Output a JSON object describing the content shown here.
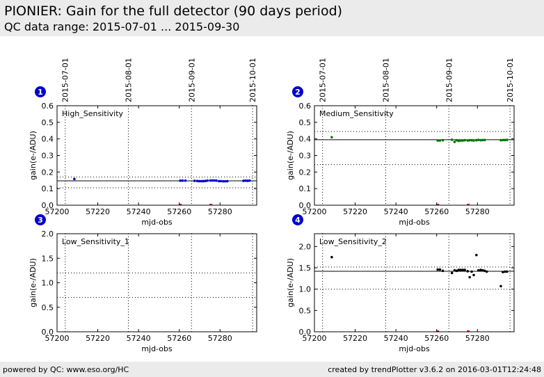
{
  "header": {
    "title": "PIONIER: Gain for the full detector (90 days period)",
    "subtitle": "QC data range: 2015-07-01 ... 2015-09-30"
  },
  "footer": {
    "left": "powered by QC: www.eso.org/HC",
    "right": "created by trendPlotter v3.6.2 on 2016-03-01T12:24:48"
  },
  "chart_data": [
    {
      "type": "scatter",
      "panel_number": "1",
      "label": "High_Sensitivity",
      "xlabel": "mjd-obs",
      "ylabel": "gain(e-/ADU)",
      "xlim": [
        57200,
        57298
      ],
      "ylim": [
        0,
        0.6
      ],
      "xticks": [
        57200,
        57220,
        57240,
        57260,
        57280
      ],
      "yticks": [
        0.0,
        0.1,
        0.2,
        0.3,
        0.4,
        0.5,
        0.6
      ],
      "date_ticks": [
        {
          "label": "2015-07-01",
          "x": 57204
        },
        {
          "label": "2015-08-01",
          "x": 57235
        },
        {
          "label": "2015-09-01",
          "x": 57266
        },
        {
          "label": "2015-10-01",
          "x": 57296
        }
      ],
      "ref_line": 0.147,
      "band": [
        0.105,
        0.17
      ],
      "color": "#0000cc",
      "x": [
        57208.5,
        57260.5,
        57261.6,
        57263.0,
        57267.5,
        57268.8,
        57269.8,
        57270.8,
        57271.8,
        57272.8,
        57273.8,
        57275.2,
        57276.2,
        57277.2,
        57278.2,
        57279.5,
        57280.5,
        57281.6,
        57282.6,
        57283.6,
        57291.5,
        57292.5,
        57293.5,
        57294.5
      ],
      "y": [
        0.158,
        0.148,
        0.148,
        0.148,
        0.147,
        0.146,
        0.145,
        0.145,
        0.145,
        0.146,
        0.148,
        0.149,
        0.149,
        0.149,
        0.148,
        0.145,
        0.145,
        0.144,
        0.144,
        0.145,
        0.147,
        0.148,
        0.147,
        0.148
      ],
      "flag_x": [
        57260.5,
        57275.5
      ]
    },
    {
      "type": "scatter",
      "panel_number": "2",
      "label": "Medium_Sensitivity",
      "xlabel": "mjd-obs",
      "ylabel": "gain(e-/ADU)",
      "xlim": [
        57200,
        57298
      ],
      "ylim": [
        0,
        0.6
      ],
      "xticks": [
        57200,
        57220,
        57240,
        57260,
        57280
      ],
      "yticks": [
        0.0,
        0.1,
        0.2,
        0.3,
        0.4,
        0.5,
        0.6
      ],
      "date_ticks": [
        {
          "label": "2015-07-01",
          "x": 57204
        },
        {
          "label": "2015-08-01",
          "x": 57235
        },
        {
          "label": "2015-09-01",
          "x": 57266
        },
        {
          "label": "2015-10-01",
          "x": 57296
        }
      ],
      "ref_line": 0.395,
      "band": [
        0.245,
        0.445
      ],
      "color": "#007700",
      "x": [
        57208.5,
        57260.5,
        57261.6,
        57263.0,
        57267.5,
        57268.8,
        57269.8,
        57270.8,
        57271.8,
        57272.8,
        57273.8,
        57275.2,
        57276.2,
        57277.2,
        57278.2,
        57279.5,
        57280.5,
        57281.6,
        57282.6,
        57283.6,
        57291.5,
        57292.5,
        57293.5,
        57294.5
      ],
      "y": [
        0.41,
        0.39,
        0.39,
        0.392,
        0.395,
        0.382,
        0.392,
        0.388,
        0.39,
        0.39,
        0.392,
        0.39,
        0.392,
        0.392,
        0.39,
        0.392,
        0.394,
        0.392,
        0.393,
        0.393,
        0.392,
        0.393,
        0.393,
        0.394
      ],
      "flag_x": [
        57260.5,
        57275.5
      ]
    },
    {
      "type": "scatter",
      "panel_number": "3",
      "label": "Low_Sensitivity_1",
      "xlabel": "mjd-obs",
      "ylabel": "gain(e-/ADU)",
      "xlim": [
        57200,
        57298
      ],
      "ylim": [
        0,
        2.0
      ],
      "xticks": [
        57200,
        57220,
        57240,
        57260,
        57280
      ],
      "yticks": [
        0.0,
        0.5,
        1.0,
        1.5,
        2.0
      ],
      "date_ticks": [
        {
          "label": "",
          "x": 57204
        },
        {
          "label": "",
          "x": 57235
        },
        {
          "label": "",
          "x": 57266
        },
        {
          "label": "",
          "x": 57296
        }
      ],
      "band": [
        0.7,
        1.2
      ],
      "color": "#000000",
      "x": [],
      "y": [],
      "flag_x": []
    },
    {
      "type": "scatter",
      "panel_number": "4",
      "label": "Low_Sensitivity_2",
      "xlabel": "mjd-obs",
      "ylabel": "gain(e-/ADU)",
      "xlim": [
        57200,
        57298
      ],
      "ylim": [
        0,
        2.3
      ],
      "xticks": [
        57200,
        57220,
        57240,
        57260,
        57280
      ],
      "yticks": [
        0.0,
        0.5,
        1.0,
        1.5,
        2.0
      ],
      "date_ticks": [
        {
          "label": "",
          "x": 57204
        },
        {
          "label": "",
          "x": 57235
        },
        {
          "label": "",
          "x": 57266
        },
        {
          "label": "",
          "x": 57296
        }
      ],
      "ref_line": 1.42,
      "band": [
        1.0,
        1.52
      ],
      "color": "#000000",
      "x": [
        57208.5,
        57260.5,
        57261.6,
        57263.0,
        57267.5,
        57268.8,
        57269.8,
        57270.8,
        57271.8,
        57272.8,
        57273.8,
        57275.2,
        57276.2,
        57277.2,
        57278.2,
        57279.5,
        57280.5,
        57281.6,
        57282.6,
        57283.6,
        57284.6,
        57291.5,
        57292.5,
        57293.5,
        57294.5
      ],
      "y": [
        1.75,
        1.46,
        1.46,
        1.43,
        1.38,
        1.44,
        1.43,
        1.45,
        1.45,
        1.45,
        1.45,
        1.42,
        1.28,
        1.41,
        1.33,
        1.8,
        1.44,
        1.45,
        1.44,
        1.43,
        1.41,
        1.07,
        1.4,
        1.41,
        1.41
      ],
      "flag_x": [
        57260.5,
        57275.5
      ]
    }
  ]
}
